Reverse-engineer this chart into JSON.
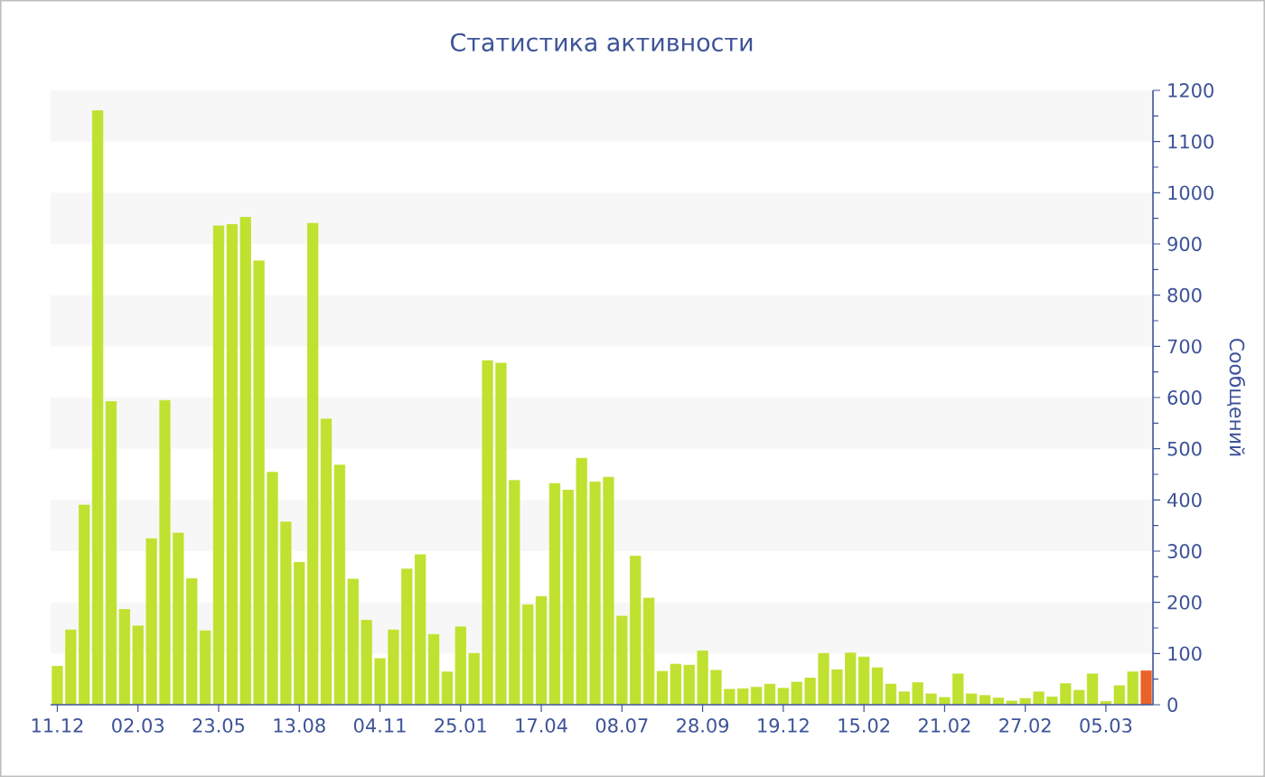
{
  "chart_data": {
    "type": "bar",
    "title": "Статистика активности",
    "ylabel": "Сообщений",
    "categories": [
      "11.12",
      null,
      null,
      null,
      null,
      null,
      "02.03",
      null,
      null,
      null,
      null,
      null,
      "23.05",
      null,
      null,
      null,
      null,
      null,
      "13.08",
      null,
      null,
      null,
      null,
      null,
      "04.11",
      null,
      null,
      null,
      null,
      null,
      "25.01",
      null,
      null,
      null,
      null,
      null,
      "17.04",
      null,
      null,
      null,
      null,
      null,
      "08.07",
      null,
      null,
      null,
      null,
      null,
      "28.09",
      null,
      null,
      null,
      null,
      null,
      "19.12",
      null,
      null,
      null,
      null,
      null,
      "15.02",
      null,
      null,
      null,
      null,
      null,
      "21.02",
      null,
      null,
      null,
      null,
      null,
      "27.02",
      null,
      null,
      null,
      null,
      null,
      "05.03",
      null,
      null,
      null
    ],
    "values": [
      76,
      147,
      391,
      1161,
      593,
      187,
      155,
      325,
      595,
      336,
      247,
      145,
      936,
      939,
      953,
      868,
      455,
      358,
      279,
      941,
      559,
      469,
      246,
      166,
      91,
      147,
      266,
      294,
      138,
      65,
      153,
      101,
      673,
      668,
      439,
      196,
      212,
      433,
      420,
      482,
      436,
      445,
      174,
      291,
      209,
      66,
      80,
      78,
      106,
      68,
      31,
      32,
      35,
      41,
      33,
      45,
      53,
      101,
      69,
      102,
      94,
      73,
      41,
      26,
      44,
      22,
      15,
      61,
      22,
      19,
      14,
      8,
      13,
      26,
      16,
      42,
      29,
      61,
      7,
      38,
      65,
      67
    ],
    "colors": [
      "#bfe12f",
      "#bfe12f",
      "#bfe12f",
      "#bfe12f",
      "#bfe12f",
      "#bfe12f",
      "#bfe12f",
      "#bfe12f",
      "#bfe12f",
      "#bfe12f",
      "#bfe12f",
      "#bfe12f",
      "#bfe12f",
      "#bfe12f",
      "#bfe12f",
      "#bfe12f",
      "#bfe12f",
      "#bfe12f",
      "#bfe12f",
      "#bfe12f",
      "#bfe12f",
      "#bfe12f",
      "#bfe12f",
      "#bfe12f",
      "#bfe12f",
      "#bfe12f",
      "#bfe12f",
      "#bfe12f",
      "#bfe12f",
      "#bfe12f",
      "#bfe12f",
      "#bfe12f",
      "#bfe12f",
      "#bfe12f",
      "#bfe12f",
      "#bfe12f",
      "#bfe12f",
      "#bfe12f",
      "#bfe12f",
      "#bfe12f",
      "#bfe12f",
      "#bfe12f",
      "#bfe12f",
      "#bfe12f",
      "#bfe12f",
      "#bfe12f",
      "#bfe12f",
      "#bfe12f",
      "#bfe12f",
      "#bfe12f",
      "#bfe12f",
      "#bfe12f",
      "#bfe12f",
      "#bfe12f",
      "#bfe12f",
      "#bfe12f",
      "#bfe12f",
      "#bfe12f",
      "#bfe12f",
      "#bfe12f",
      "#bfe12f",
      "#bfe12f",
      "#bfe12f",
      "#bfe12f",
      "#bfe12f",
      "#bfe12f",
      "#bfe12f",
      "#bfe12f",
      "#bfe12f",
      "#bfe12f",
      "#bfe12f",
      "#bfe12f",
      "#bfe12f",
      "#bfe12f",
      "#bfe12f",
      "#bfe12f",
      "#bfe12f",
      "#bfe12f",
      "#bfe12f",
      "#bfe12f",
      "#bfe12f",
      "#e8632a"
    ],
    "ylim": [
      0,
      1200
    ],
    "yticks": [
      0,
      100,
      200,
      300,
      400,
      500,
      600,
      700,
      800,
      900,
      1000,
      1100,
      1200
    ],
    "bands": [
      {
        "axis": "y",
        "from": 100,
        "to": 200,
        "color": "#f7f7f7"
      },
      {
        "axis": "y",
        "from": 300,
        "to": 400,
        "color": "#f7f7f7"
      },
      {
        "axis": "y",
        "from": 500,
        "to": 600,
        "color": "#f7f7f7"
      },
      {
        "axis": "y",
        "from": 700,
        "to": 800,
        "color": "#f7f7f7"
      },
      {
        "axis": "y",
        "from": 900,
        "to": 1000,
        "color": "#f7f7f7"
      },
      {
        "axis": "y",
        "from": 1100,
        "to": 1200,
        "color": "#f7f7f7"
      }
    ]
  }
}
